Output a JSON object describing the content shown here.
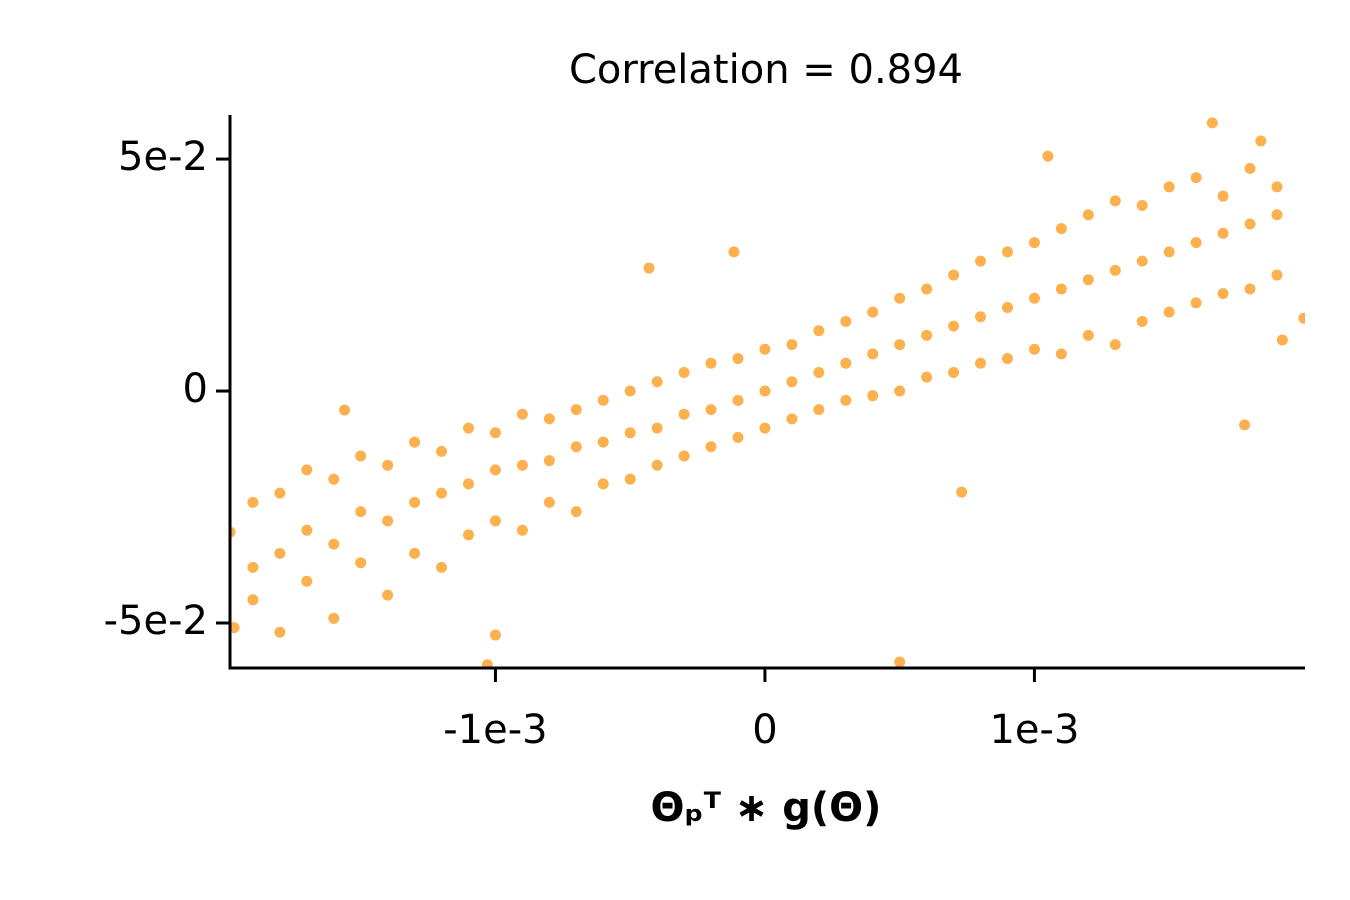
{
  "chart_data": {
    "type": "scatter",
    "title": "Correlation = 0.894",
    "xlabel": "Θₚᵀ ∗ g(Θ)",
    "color": "#fdb14e",
    "xlim": [
      -0.001985,
      0.002004
    ],
    "ylim": [
      -0.0597,
      0.0595
    ],
    "xticks": [
      {
        "value": -0.001,
        "label": "-1e-3"
      },
      0,
      {
        "value": 0.001,
        "label": "1e-3"
      }
    ],
    "yticks": [
      {
        "value": -0.05,
        "label": "-5e-2"
      },
      0,
      {
        "value": 0.05,
        "label": "5e-2"
      }
    ],
    "x": [
      -0.0019,
      -0.0019,
      -0.0019,
      -0.0018,
      -0.0018,
      -0.0018,
      -0.0017,
      -0.0017,
      -0.0017,
      -0.0016,
      -0.0016,
      -0.0016,
      -0.0015,
      -0.0015,
      -0.0015,
      -0.0014,
      -0.0014,
      -0.0014,
      -0.0013,
      -0.0013,
      -0.0013,
      -0.0012,
      -0.0012,
      -0.0012,
      -0.0011,
      -0.0011,
      -0.0011,
      -0.001,
      -0.001,
      -0.001,
      -0.0009,
      -0.0009,
      -0.0009,
      -0.0008,
      -0.0008,
      -0.0008,
      -0.0007,
      -0.0007,
      -0.0007,
      -0.0006,
      -0.0006,
      -0.0006,
      -0.0005,
      -0.0005,
      -0.0005,
      -0.0004,
      -0.0004,
      -0.0004,
      -0.0003,
      -0.0003,
      -0.0003,
      -0.0002,
      -0.0002,
      -0.0002,
      -0.0001,
      -0.0001,
      -0.0001,
      0,
      0,
      0,
      0.0001,
      0.0001,
      0.0001,
      0.0002,
      0.0002,
      0.0002,
      0.0003,
      0.0003,
      0.0003,
      0.0004,
      0.0004,
      0.0004,
      0.0005,
      0.0005,
      0.0005,
      0.0006,
      0.0006,
      0.0006,
      0.0007,
      0.0007,
      0.0007,
      0.0008,
      0.0008,
      0.0008,
      0.0009,
      0.0009,
      0.0009,
      0.001,
      0.001,
      0.001,
      0.0011,
      0.0011,
      0.0011,
      0.0012,
      0.0012,
      0.0012,
      0.0013,
      0.0013,
      0.0013,
      0.0014,
      0.0014,
      0.0014,
      0.0015,
      0.0015,
      0.0015,
      0.0016,
      0.0016,
      0.0016,
      0.0017,
      0.0017,
      0.0017,
      0.0018,
      0.0018,
      0.0018,
      0.0019,
      0.0019,
      0.0019,
      0.00166,
      0.00105,
      0.00184,
      0.00178,
      0.0005,
      -0.00103,
      -0.001,
      -0.001985,
      -0.00197,
      -0.00156,
      -0.000115,
      -0.00043,
      0.00073,
      0.00192,
      0.002
    ],
    "y": [
      -0.045,
      -0.038,
      -0.024,
      -0.052,
      -0.035,
      -0.022,
      -0.041,
      -0.03,
      -0.017,
      -0.049,
      -0.033,
      -0.019,
      -0.037,
      -0.026,
      -0.014,
      -0.044,
      -0.028,
      -0.016,
      -0.035,
      -0.024,
      -0.011,
      -0.038,
      -0.022,
      -0.013,
      -0.031,
      -0.02,
      -0.008,
      -0.028,
      -0.017,
      -0.009,
      -0.03,
      -0.016,
      -0.005,
      -0.024,
      -0.015,
      -0.006,
      -0.026,
      -0.012,
      -0.004,
      -0.02,
      -0.011,
      -0.002,
      -0.019,
      -0.009,
      0,
      -0.016,
      -0.008,
      0.002,
      -0.014,
      -0.005,
      0.004,
      -0.012,
      -0.004,
      0.006,
      -0.01,
      -0.002,
      0.007,
      -0.008,
      0,
      0.009,
      -0.006,
      0.002,
      0.01,
      -0.004,
      0.004,
      0.013,
      -0.002,
      0.006,
      0.015,
      -0.001,
      0.008,
      0.017,
      0,
      0.01,
      0.02,
      0.003,
      0.012,
      0.022,
      0.004,
      0.014,
      0.025,
      0.006,
      0.016,
      0.028,
      0.007,
      0.018,
      0.03,
      0.009,
      0.02,
      0.032,
      0.008,
      0.022,
      0.035,
      0.012,
      0.024,
      0.038,
      0.01,
      0.026,
      0.041,
      0.015,
      0.028,
      0.04,
      0.017,
      0.03,
      0.044,
      0.019,
      0.032,
      0.046,
      0.021,
      0.034,
      0.042,
      0.022,
      0.036,
      0.048,
      0.025,
      0.038,
      0.044,
      0.0578,
      0.0506,
      0.0539,
      -0.0073,
      -0.0584,
      -0.059,
      -0.0526,
      -0.0304,
      -0.051,
      -0.0041,
      0.03,
      0.0265,
      -0.0218,
      0.011,
      0.0157
    ]
  }
}
